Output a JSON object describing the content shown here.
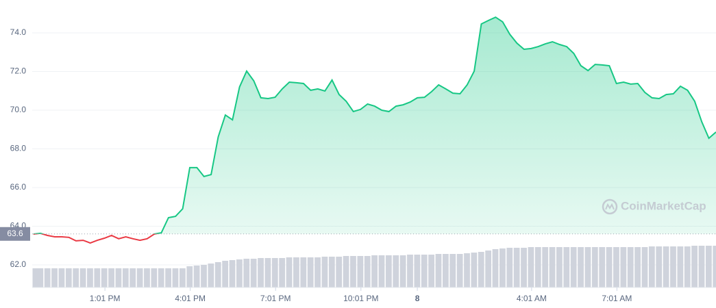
{
  "chart_data": {
    "type": "line",
    "x": [
      10.5,
      10.75,
      11,
      11.25,
      11.5,
      11.75,
      12,
      12.25,
      12.5,
      12.75,
      13,
      13.25,
      13.5,
      13.75,
      14,
      14.25,
      14.5,
      14.75,
      15,
      15.25,
      15.5,
      15.75,
      16,
      16.25,
      16.5,
      16.75,
      17,
      17.25,
      17.5,
      17.75,
      18,
      18.25,
      18.5,
      18.75,
      19,
      19.25,
      19.5,
      19.75,
      20,
      20.25,
      20.5,
      20.75,
      21,
      21.25,
      21.5,
      21.75,
      22,
      22.25,
      22.5,
      22.75,
      23,
      23.25,
      23.5,
      23.75,
      24,
      24.25,
      24.5,
      24.75,
      25,
      25.25,
      25.5,
      25.75,
      26,
      26.25,
      26.5,
      26.75,
      27,
      27.25,
      27.5,
      27.75,
      28,
      28.25,
      28.5,
      28.75,
      29,
      29.25,
      29.5,
      29.75,
      30,
      30.25,
      30.5,
      30.75,
      31,
      31.25,
      31.5,
      31.75,
      32,
      32.25,
      32.5,
      32.75,
      33,
      33.25,
      33.5,
      33.75,
      34,
      34.25,
      34.5
    ],
    "xlim": [
      10.46,
      34.5
    ],
    "xticks": [
      {
        "value": 13.0167,
        "label": "1:01 PM"
      },
      {
        "value": 16.0167,
        "label": "4:01 PM"
      },
      {
        "value": 19.0167,
        "label": "7:01 PM"
      },
      {
        "value": 22.0167,
        "label": "10:01 PM"
      },
      {
        "value": 24,
        "label": "8"
      },
      {
        "value": 28.0167,
        "label": "4:01 AM"
      },
      {
        "value": 31.0167,
        "label": "7:01 AM"
      }
    ],
    "ylim": [
      60.83,
      75.7
    ],
    "yticks": [
      {
        "value": 62,
        "label": "62.0"
      },
      {
        "value": 64,
        "label": "64.0"
      },
      {
        "value": 66,
        "label": "66.0"
      },
      {
        "value": 68,
        "label": "68.0"
      },
      {
        "value": 70,
        "label": "70.0"
      },
      {
        "value": 72,
        "label": "72.0"
      },
      {
        "value": 74,
        "label": "74.0"
      }
    ],
    "grid": true,
    "series": [
      {
        "color": "#16c784",
        "below_color": "#ea3943",
        "values": [
          63.59,
          63.63,
          63.52,
          63.45,
          63.45,
          63.42,
          63.24,
          63.27,
          63.13,
          63.27,
          63.38,
          63.52,
          63.35,
          63.45,
          63.35,
          63.27,
          63.35,
          63.59,
          63.66,
          64.44,
          64.51,
          64.9,
          67.03,
          67.03,
          66.57,
          66.67,
          68.62,
          69.75,
          69.5,
          71.2,
          72.02,
          71.52,
          70.64,
          70.6,
          70.67,
          71.1,
          71.45,
          71.42,
          71.38,
          71.03,
          71.1,
          70.99,
          71.56,
          70.81,
          70.46,
          69.93,
          70.04,
          70.32,
          70.21,
          70.0,
          69.93,
          70.21,
          70.28,
          70.42,
          70.64,
          70.67,
          70.96,
          71.31,
          71.1,
          70.88,
          70.85,
          71.31,
          72.02,
          74.46,
          74.64,
          74.81,
          74.57,
          73.93,
          73.47,
          73.15,
          73.19,
          73.29,
          73.43,
          73.54,
          73.4,
          73.29,
          72.94,
          72.3,
          72.05,
          72.37,
          72.34,
          72.3,
          71.38,
          71.45,
          71.35,
          71.38,
          70.92,
          70.64,
          70.6,
          70.81,
          70.85,
          71.24,
          71.03,
          70.46,
          69.4,
          68.55,
          68.87
        ]
      }
    ],
    "reference": {
      "value": 63.6,
      "label": "63.6"
    },
    "volume": {
      "color": "#cfd3dc",
      "ylim": [
        0,
        100
      ],
      "values": [
        28,
        28,
        28,
        28,
        28,
        28,
        28,
        28,
        28,
        28,
        28,
        28,
        28,
        28,
        28,
        28,
        28,
        28,
        28,
        28,
        28,
        28,
        31,
        32,
        33,
        35,
        37,
        39,
        40,
        41,
        42,
        42,
        43,
        43,
        43,
        43,
        44,
        44,
        44,
        44,
        44,
        45,
        45,
        45,
        46,
        46,
        46,
        46,
        47,
        47,
        47,
        47,
        47,
        48,
        48,
        48,
        48,
        49,
        49,
        49,
        49,
        50,
        51,
        52,
        54,
        56,
        57,
        58,
        58,
        58,
        59,
        59,
        59,
        59,
        59,
        59,
        59,
        59,
        59,
        59,
        59,
        59,
        59,
        59,
        59,
        59,
        59,
        60,
        60,
        60,
        60,
        60,
        60,
        61,
        61,
        61,
        61
      ]
    },
    "watermark": "CoinMarketCap"
  }
}
